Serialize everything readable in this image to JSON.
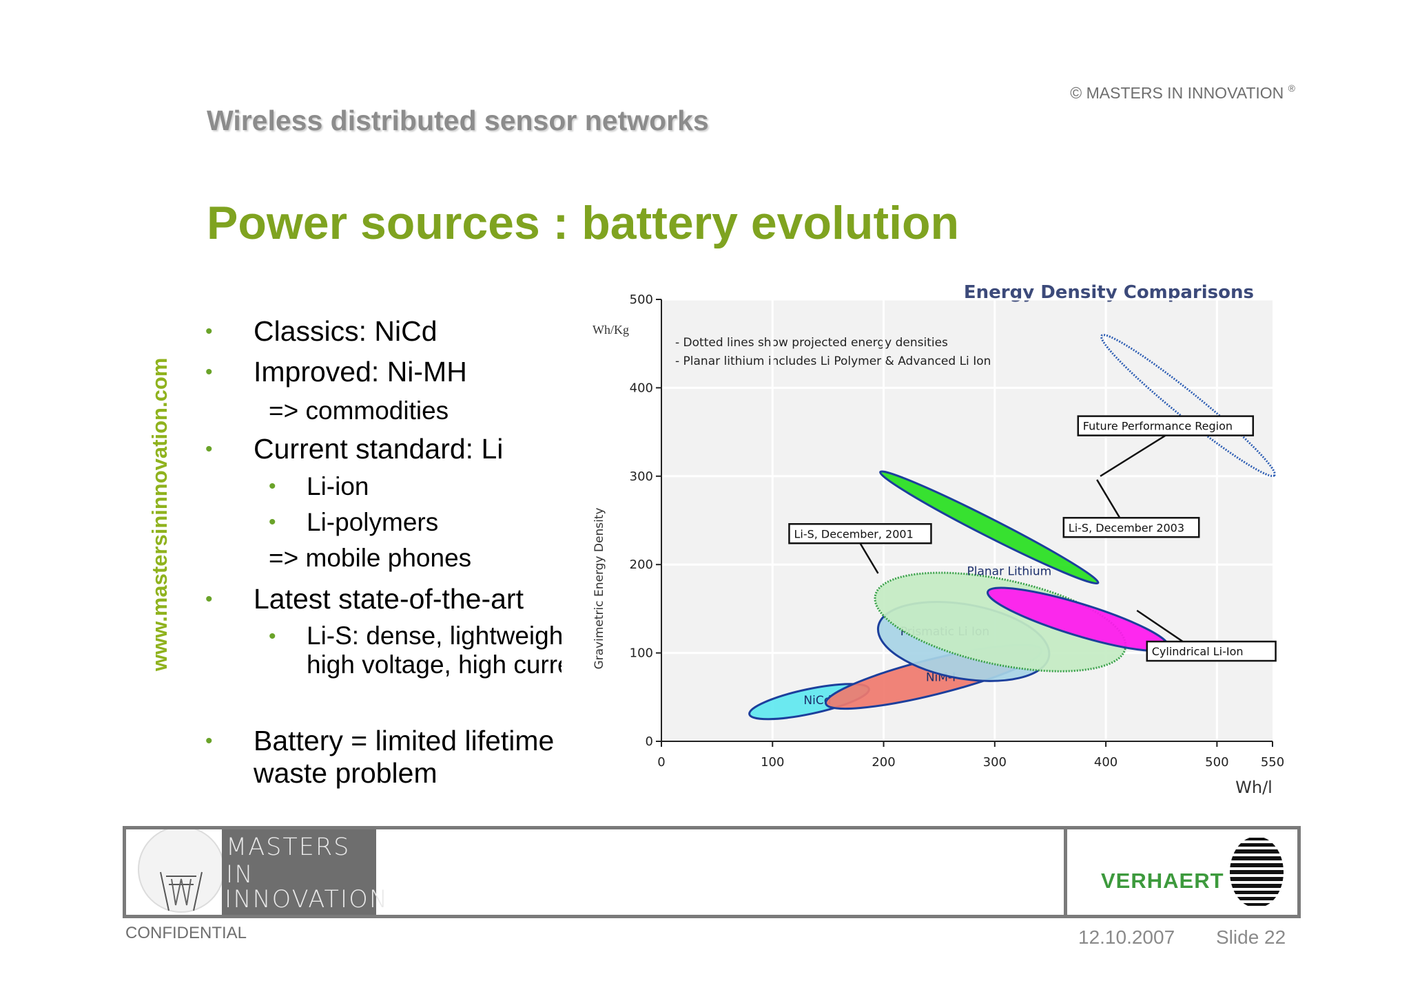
{
  "header": {
    "copyright": "© MASTERS IN INNOVATION",
    "copyright_mark": "®",
    "section_title": "Wireless distributed sensor networks",
    "slide_title": "Power sources : battery evolution"
  },
  "sidebar": {
    "url": "www.mastersininnovation.com"
  },
  "bullets": {
    "classics": "Classics: NiCd",
    "improved": "Improved: Ni-MH",
    "commodities": "=> commodities",
    "current": "Current standard: Li",
    "li_ion": "Li-ion",
    "li_polymers": "Li-polymers",
    "mobile": "=> mobile phones",
    "latest": "Latest state-of-the-art",
    "lis_line1": "Li-S: dense, lightweight,",
    "lis_line2": "high voltage, high current",
    "battery_line1": "Battery = limited lifetime +",
    "battery_line2": "waste problem"
  },
  "bullet_glyph": "•",
  "chart_data": {
    "type": "scatter",
    "title": "Energy Density Comparisons",
    "xlabel": "Wh/l",
    "ylabel": "Gravimetric Energy Density",
    "y_unit": "Wh/Kg",
    "xlim": [
      0,
      550
    ],
    "ylim": [
      0,
      500
    ],
    "x_ticks": [
      "0",
      "100",
      "200",
      "300",
      "400",
      "500",
      "550"
    ],
    "y_ticks": [
      "0",
      "100",
      "200",
      "300",
      "400",
      "500"
    ],
    "notes": [
      "- Dotted lines show projected energy densities",
      "- Planar lithium includes Li Polymer & Advanced Li Ion"
    ],
    "regions": [
      {
        "name": "NiCd",
        "cx": 133,
        "cy": 45,
        "rx": 55,
        "ry": 14,
        "rot": -12,
        "color": "#5fe8f0",
        "label": "NiCd",
        "lx": 128,
        "ly": 42
      },
      {
        "name": "NiMH",
        "cx": 245,
        "cy": 73,
        "rx": 100,
        "ry": 20,
        "rot": -14,
        "color": "#f07a6e",
        "label": "NiM-I",
        "lx": 238,
        "ly": 68
      },
      {
        "name": "Prismatic Li Ion",
        "cx": 272,
        "cy": 113,
        "rx": 78,
        "ry": 42,
        "rot": 10,
        "color": "#a7d4e6",
        "label": "Prismatic Li Ion",
        "lx": 215,
        "ly": 120
      },
      {
        "name": "Planar Lithium",
        "cx": 305,
        "cy": 135,
        "rx": 115,
        "ry": 48,
        "rot": 12,
        "color": "#c4ecc3",
        "dash": true,
        "label": "Planar Lithium",
        "lx": 275,
        "ly": 188
      },
      {
        "name": "Cylindrical Li-Ion",
        "cx": 375,
        "cy": 138,
        "rx": 85,
        "ry": 18,
        "rot": 17,
        "color": "#ff17ef",
        "label": "",
        "lx": 0,
        "ly": 0
      },
      {
        "name": "Li-S",
        "cx": 295,
        "cy": 242,
        "rx": 110,
        "ry": 10,
        "rot": 27,
        "color": "#27e01f",
        "label": "",
        "lx": 0,
        "ly": 0
      },
      {
        "name": "Future Performance Region",
        "cx": 474,
        "cy": 380,
        "rx": 100,
        "ry": 14,
        "rot": 39,
        "color": "none",
        "dash": true,
        "label": "",
        "lx": 0,
        "ly": 0
      }
    ],
    "callouts": [
      {
        "text": "Future Performance Region",
        "bx": 375,
        "by": 357,
        "ax": 395,
        "ay": 300
      },
      {
        "text": "Li-S, December, 2001",
        "bx": 115,
        "by": 235,
        "ax": 195,
        "ay": 190
      },
      {
        "text": "Li-S, December 2003",
        "bx": 362,
        "by": 242,
        "ax": 392,
        "ay": 296
      },
      {
        "text": "Cylindrical Li-Ion",
        "bx": 437,
        "by": 102,
        "ax": 428,
        "ay": 148
      }
    ]
  },
  "footer": {
    "logo_line1": "MASTERS IN",
    "logo_line2": "INNOVATION",
    "company": "VERHAERT",
    "confidential": "CONFIDENTIAL",
    "date": "12.10.2007",
    "slide": "Slide 22"
  }
}
